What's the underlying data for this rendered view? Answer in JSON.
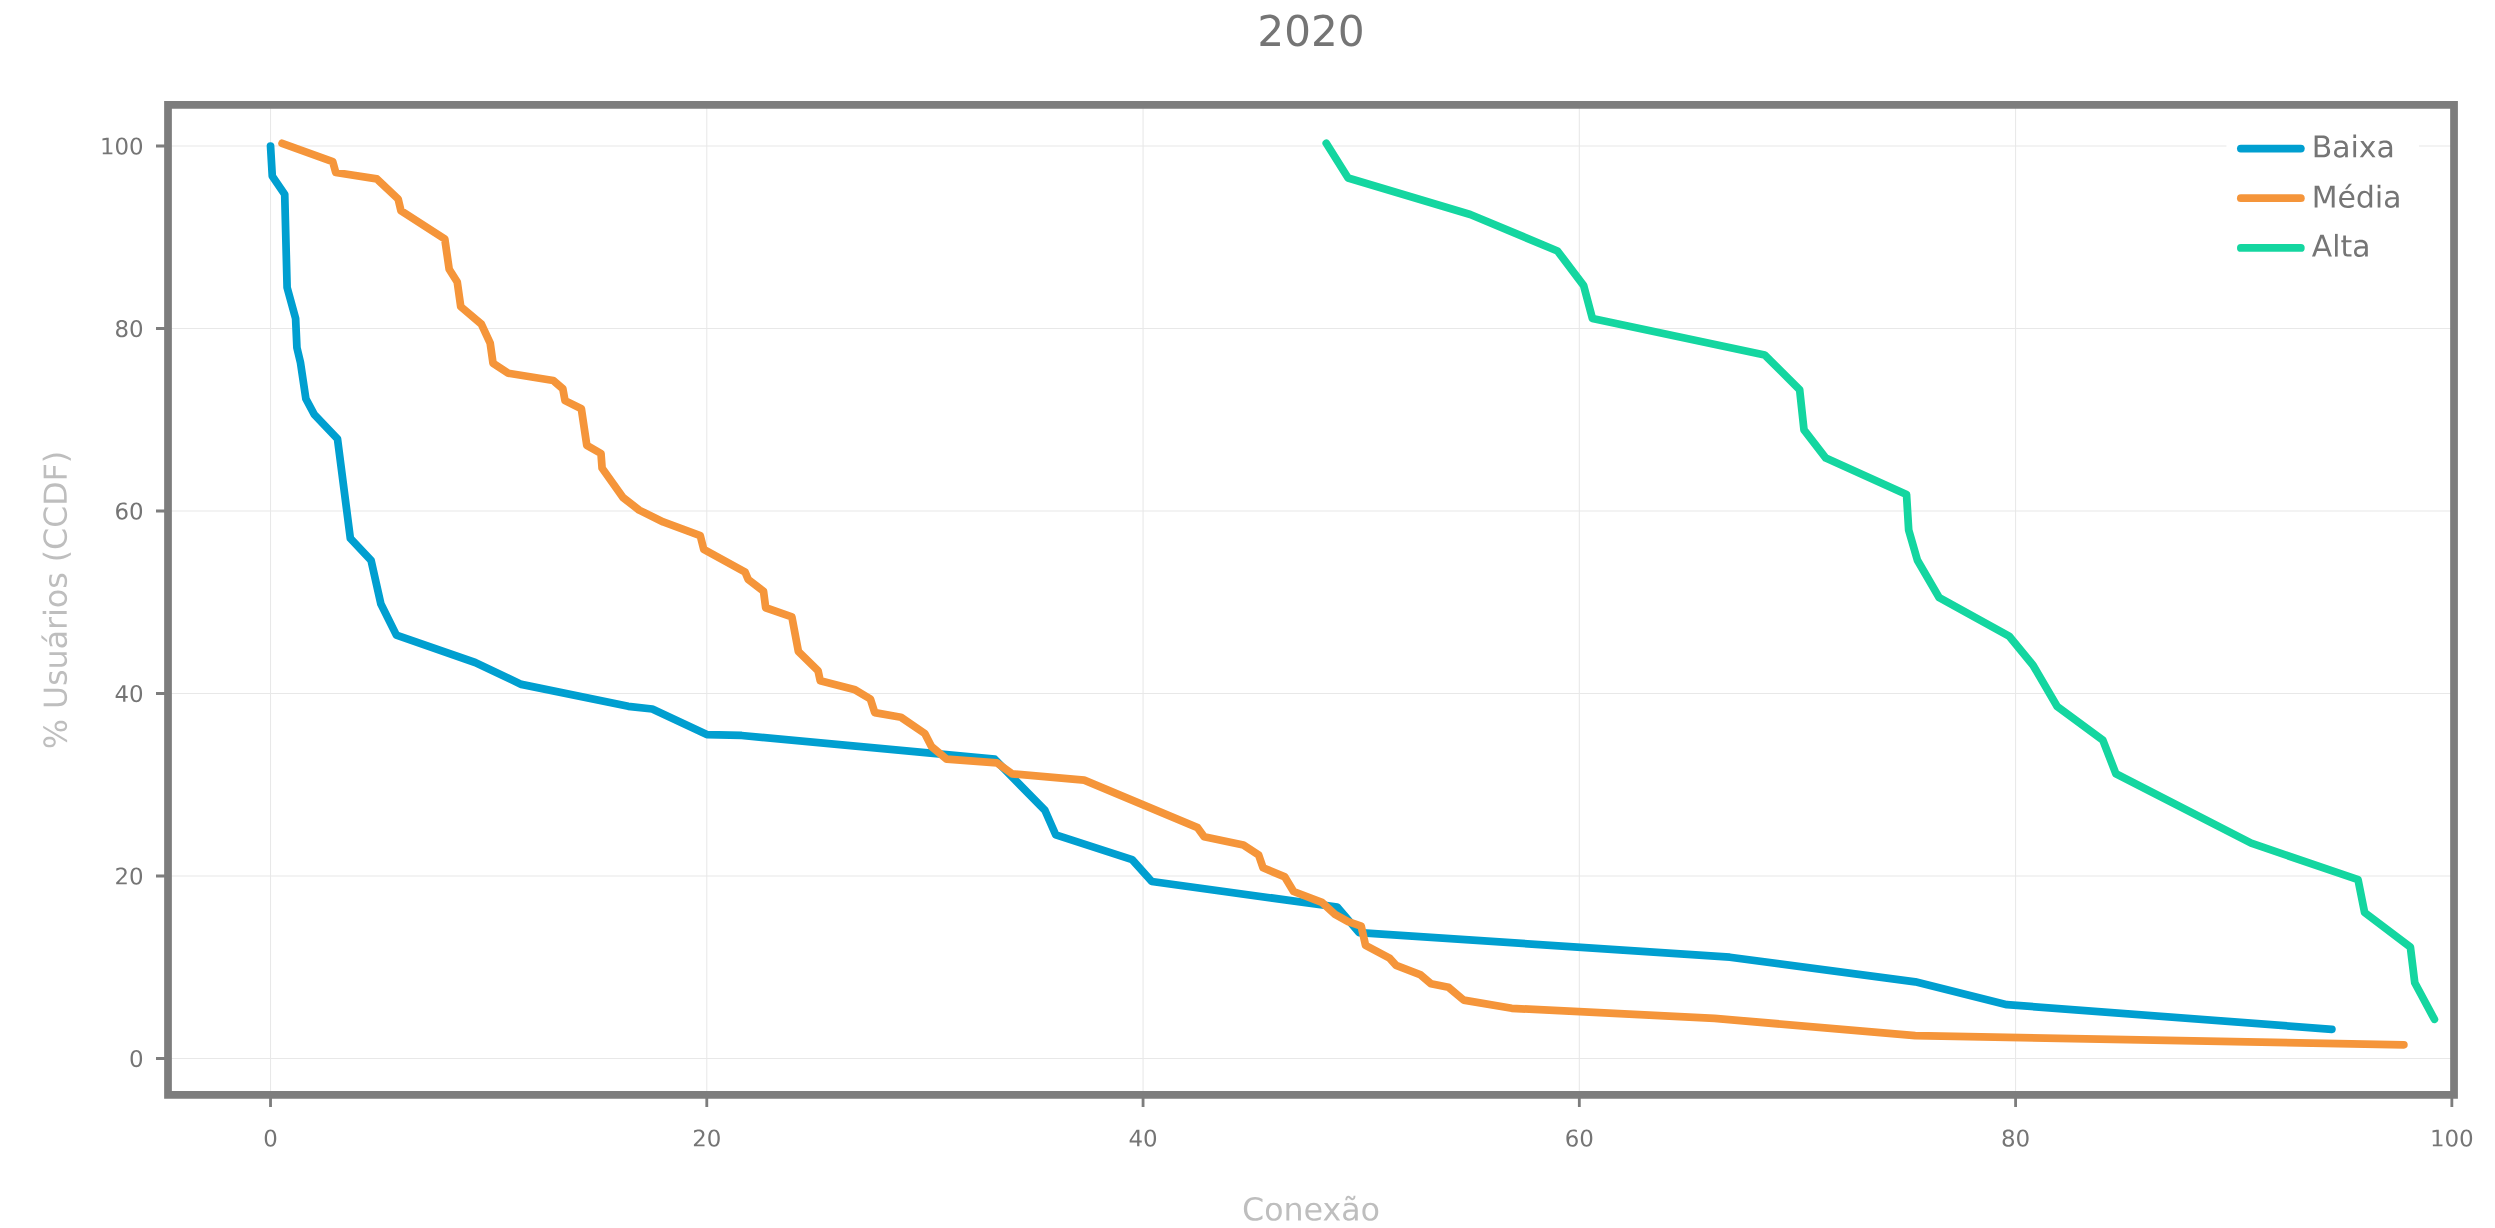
{
  "chart_data": {
    "type": "line",
    "title": "2020",
    "xlabel": "Conexão",
    "ylabel": "% Usuários (CCDF)",
    "xlim": [
      -4.7,
      100.1
    ],
    "ylim": [
      -4,
      104.5
    ],
    "xticks": [
      0,
      20,
      40,
      60,
      80,
      100
    ],
    "yticks": [
      0,
      20,
      40,
      60,
      80,
      100
    ],
    "grid": true,
    "legend": "top right",
    "series": [
      {
        "name": "Baixa",
        "color": "#009fd0",
        "x": [
          0,
          0.08,
          0.65,
          0.76,
          1.15,
          1.21,
          1.37,
          1.62,
          2.0,
          3.07,
          3.66,
          4.61,
          5.06,
          5.77,
          9.38,
          11.5,
          16.4,
          17.5,
          20.0,
          21.6,
          33.2,
          35.5,
          36.0,
          39.5,
          40.4,
          48.9,
          49.9,
          66.9,
          75.4,
          79.6,
          94.5
        ],
        "values": [
          100,
          96.7,
          94.7,
          84.5,
          81.1,
          77.9,
          76.3,
          72.3,
          70.6,
          67.9,
          57.0,
          54.6,
          49.8,
          46.4,
          43.4,
          41.0,
          38.6,
          38.3,
          35.5,
          35.4,
          32.8,
          27.2,
          24.5,
          21.8,
          19.4,
          16.6,
          13.8,
          11.1,
          8.4,
          5.9,
          3.2
        ]
      },
      {
        "name": "Média",
        "color": "#f5953a",
        "x": [
          0.53,
          2.85,
          2.99,
          4.87,
          5.85,
          5.98,
          7.99,
          8.19,
          8.56,
          8.72,
          9.66,
          10.07,
          10.2,
          10.9,
          12.96,
          13.4,
          13.5,
          14.25,
          14.5,
          15.15,
          15.2,
          16.15,
          16.9,
          18.0,
          19.7,
          19.86,
          21.76,
          21.9,
          22.6,
          22.7,
          23.9,
          24.2,
          25.1,
          25.2,
          26.8,
          27.5,
          27.7,
          28.9,
          30.0,
          30.3,
          31.0,
          33.3,
          34.0,
          37.3,
          42.5,
          42.8,
          44.6,
          45.3,
          45.5,
          46.5,
          46.9,
          48.2,
          48.8,
          49.4,
          50.0,
          50.2,
          51.3,
          51.6,
          52.7,
          53.2,
          54.0,
          54.7,
          56.9,
          66.2,
          75.4,
          97.8
        ],
        "values": [
          100.3,
          98.3,
          97.1,
          96.4,
          94.2,
          92.9,
          89.8,
          86.5,
          85.1,
          82.4,
          80.5,
          78.4,
          76.2,
          75.1,
          74.3,
          73.4,
          72.1,
          71.2,
          67.2,
          66.3,
          64.7,
          61.5,
          60.1,
          58.8,
          57.3,
          55.8,
          53.3,
          52.5,
          51.2,
          49.4,
          48.4,
          44.6,
          42.5,
          41.4,
          40.4,
          39.4,
          37.9,
          37.4,
          35.6,
          34.2,
          32.8,
          32.4,
          31.2,
          30.5,
          25.3,
          24.3,
          23.4,
          22.3,
          20.9,
          19.9,
          18.3,
          17.1,
          15.8,
          15.0,
          14.5,
          12.4,
          11.0,
          10.2,
          9.2,
          8.2,
          7.8,
          6.4,
          5.5,
          4.4,
          2.5,
          1.5
        ]
      },
      {
        "name": "Alta",
        "color": "#14d6a0",
        "x": [
          48.4,
          49.4,
          55.0,
          59.0,
          60.2,
          60.6,
          68.5,
          70.1,
          70.3,
          71.3,
          75.0,
          75.1,
          75.5,
          76.5,
          79.7,
          80.8,
          81.9,
          84.0,
          84.6,
          90.8,
          95.7,
          96.0,
          98.1,
          98.3,
          99.2
        ],
        "values": [
          100.3,
          96.5,
          92.5,
          88.5,
          84.7,
          81.1,
          77.1,
          73.3,
          68.9,
          65.8,
          61.8,
          57.9,
          54.6,
          50.5,
          46.3,
          43.1,
          38.6,
          34.9,
          31.2,
          23.6,
          19.6,
          16.0,
          12.2,
          8.3,
          4.3
        ]
      }
    ]
  }
}
